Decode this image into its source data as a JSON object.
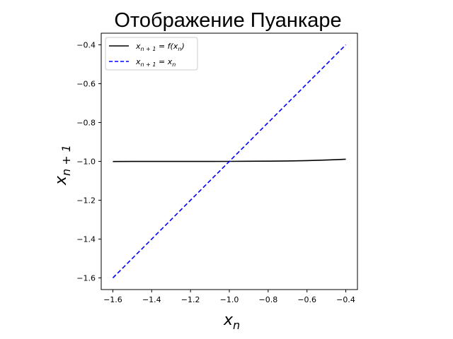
{
  "chart_data": {
    "type": "line",
    "title": "Отображение Пуанкаре",
    "xlabel": "x n",
    "ylabel": "x n + 1",
    "xlim": [
      -1.66,
      -0.34
    ],
    "ylim": [
      -1.66,
      -0.34
    ],
    "x_ticks": [
      -1.6,
      -1.4,
      -1.2,
      -1.0,
      -0.8,
      -0.6,
      -0.4
    ],
    "y_ticks": [
      -1.6,
      -1.4,
      -1.2,
      -1.0,
      -0.8,
      -0.6,
      -0.4
    ],
    "x_tick_labels": [
      "−1.6",
      "−1.4",
      "−1.2",
      "−1.0",
      "−0.8",
      "−0.6",
      "−0.4"
    ],
    "y_tick_labels": [
      "−1.6",
      "−1.4",
      "−1.2",
      "−1.0",
      "−0.8",
      "−0.6",
      "−0.4"
    ],
    "grid": false,
    "legend_position": "top-left",
    "series": [
      {
        "name": "x n + 1 = f(x n)",
        "color": "#000000",
        "style": "solid",
        "x": [
          -1.6,
          -1.5,
          -1.4,
          -1.3,
          -1.2,
          -1.1,
          -1.0,
          -0.9,
          -0.8,
          -0.7,
          -0.6,
          -0.5,
          -0.45,
          -0.4
        ],
        "y": [
          -1.0005,
          -1.0004,
          -1.0004,
          -1.0003,
          -1.0002,
          -1.0001,
          -1.0,
          -0.9995,
          -0.999,
          -0.998,
          -0.996,
          -0.993,
          -0.991,
          -0.989
        ]
      },
      {
        "name": "x n + 1 = x n",
        "color": "#0000ff",
        "style": "dashed",
        "x": [
          -1.6,
          -0.4
        ],
        "y": [
          -1.6,
          -0.4
        ]
      }
    ]
  },
  "legend": {
    "entries": [
      {
        "sym": "x",
        "sub": "n + 1",
        "eq": " = f(",
        "sym2": "x",
        "sub2": "n",
        "close": ")"
      },
      {
        "sym": "x",
        "sub": "n + 1",
        "eq": " = ",
        "sym2": "x",
        "sub2": "n",
        "close": ""
      }
    ]
  },
  "axis_text": {
    "x_sym": "x",
    "x_sub": "n",
    "y_sym": "x",
    "y_sub": "n + 1"
  }
}
